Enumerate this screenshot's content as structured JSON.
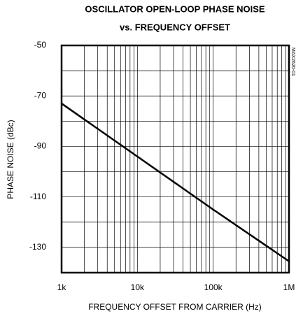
{
  "chart_data": {
    "type": "line",
    "title": [
      "OSCILLATOR OPEN-LOOP PHASE NOISE",
      "vs. FREQUENCY OFFSET"
    ],
    "xlabel": "FREQUENCY OFFSET FROM CARRIER (Hz)",
    "ylabel": "PHASE NOISE (dBc)",
    "side_note": "MAX2620-01",
    "x": [
      1000,
      10000,
      100000,
      1000000
    ],
    "series": [
      {
        "name": "phase noise",
        "color": "#000000",
        "values": [
          -73,
          -94,
          -115,
          -135.5
        ]
      }
    ],
    "xlog": true,
    "xlim": [
      1000,
      1000000
    ],
    "xticks": [
      {
        "value": 1000,
        "label": "1k"
      },
      {
        "value": 10000,
        "label": "10k"
      },
      {
        "value": 100000,
        "label": "100k"
      },
      {
        "value": 1000000,
        "label": "1M"
      }
    ],
    "ylim": [
      -140,
      -50
    ],
    "yticks": [
      -50,
      -70,
      -90,
      -110,
      -130
    ],
    "yminor": [
      -60,
      -80,
      -100,
      -120,
      -140
    ],
    "grid": true
  }
}
